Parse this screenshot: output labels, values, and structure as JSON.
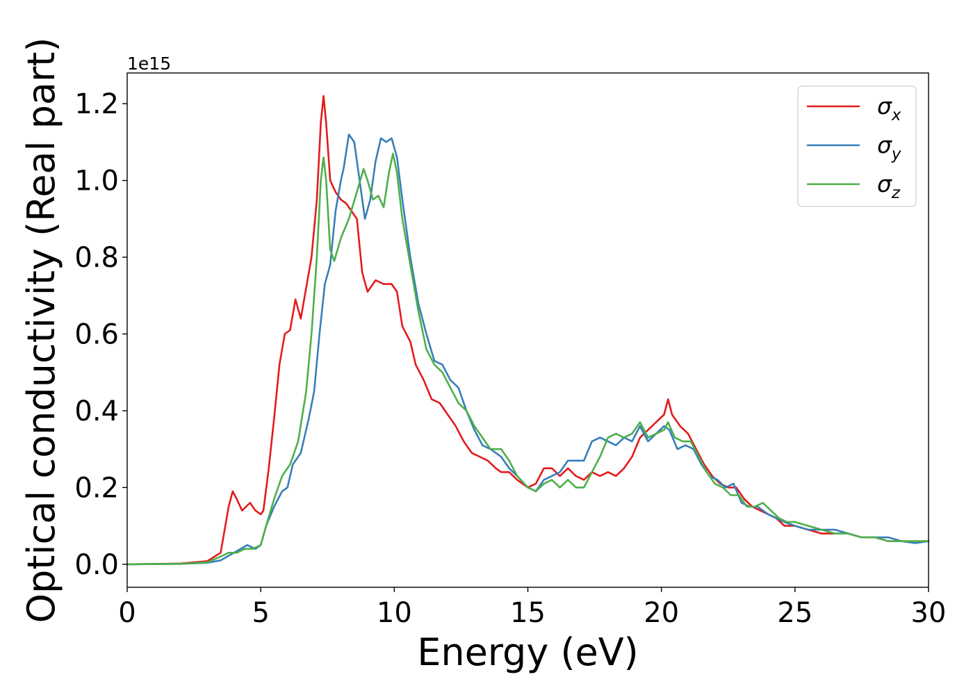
{
  "chart_data": {
    "type": "line",
    "title": "",
    "xlabel": "Energy (eV)",
    "ylabel": "Optical conductivity (Real part)",
    "y_offset_label": "1e15",
    "xlim": [
      0,
      30
    ],
    "ylim": [
      -0.06,
      1.28
    ],
    "xticks": [
      0,
      5,
      10,
      15,
      20,
      25,
      30
    ],
    "yticks": [
      0.0,
      0.2,
      0.4,
      0.6,
      0.8,
      1.0,
      1.2
    ],
    "xtick_labels": [
      "0",
      "5",
      "10",
      "15",
      "20",
      "25",
      "30"
    ],
    "ytick_labels": [
      "0.0",
      "0.2",
      "0.4",
      "0.6",
      "0.8",
      "1.0",
      "1.2"
    ],
    "grid": false,
    "legend_position": "top-right",
    "series": [
      {
        "name": "σx",
        "legend_symbol": "σ",
        "legend_subscript": "x",
        "color": "#e41a1c",
        "points": [
          [
            0,
            0
          ],
          [
            2,
            0.002
          ],
          [
            3,
            0.008
          ],
          [
            3.5,
            0.03
          ],
          [
            3.8,
            0.15
          ],
          [
            3.95,
            0.19
          ],
          [
            4.1,
            0.17
          ],
          [
            4.3,
            0.14
          ],
          [
            4.6,
            0.16
          ],
          [
            4.8,
            0.14
          ],
          [
            5.0,
            0.13
          ],
          [
            5.1,
            0.14
          ],
          [
            5.3,
            0.25
          ],
          [
            5.5,
            0.38
          ],
          [
            5.7,
            0.52
          ],
          [
            5.9,
            0.6
          ],
          [
            6.1,
            0.61
          ],
          [
            6.3,
            0.69
          ],
          [
            6.5,
            0.64
          ],
          [
            6.7,
            0.72
          ],
          [
            6.9,
            0.8
          ],
          [
            7.1,
            0.95
          ],
          [
            7.25,
            1.15
          ],
          [
            7.35,
            1.22
          ],
          [
            7.45,
            1.15
          ],
          [
            7.6,
            1.0
          ],
          [
            7.8,
            0.97
          ],
          [
            8.0,
            0.95
          ],
          [
            8.2,
            0.94
          ],
          [
            8.4,
            0.92
          ],
          [
            8.6,
            0.9
          ],
          [
            8.8,
            0.76
          ],
          [
            9.0,
            0.71
          ],
          [
            9.3,
            0.74
          ],
          [
            9.6,
            0.73
          ],
          [
            9.9,
            0.73
          ],
          [
            10.1,
            0.71
          ],
          [
            10.3,
            0.62
          ],
          [
            10.6,
            0.58
          ],
          [
            10.8,
            0.52
          ],
          [
            11.1,
            0.48
          ],
          [
            11.4,
            0.43
          ],
          [
            11.7,
            0.42
          ],
          [
            12.0,
            0.39
          ],
          [
            12.3,
            0.36
          ],
          [
            12.6,
            0.32
          ],
          [
            12.9,
            0.29
          ],
          [
            13.2,
            0.28
          ],
          [
            13.5,
            0.27
          ],
          [
            13.8,
            0.25
          ],
          [
            14.0,
            0.24
          ],
          [
            14.3,
            0.24
          ],
          [
            14.6,
            0.22
          ],
          [
            15.0,
            0.2
          ],
          [
            15.3,
            0.21
          ],
          [
            15.6,
            0.25
          ],
          [
            15.9,
            0.25
          ],
          [
            16.2,
            0.23
          ],
          [
            16.5,
            0.25
          ],
          [
            16.8,
            0.23
          ],
          [
            17.1,
            0.22
          ],
          [
            17.4,
            0.24
          ],
          [
            17.7,
            0.23
          ],
          [
            18.0,
            0.24
          ],
          [
            18.3,
            0.23
          ],
          [
            18.6,
            0.25
          ],
          [
            18.9,
            0.28
          ],
          [
            19.2,
            0.33
          ],
          [
            19.5,
            0.35
          ],
          [
            19.8,
            0.37
          ],
          [
            20.1,
            0.39
          ],
          [
            20.25,
            0.43
          ],
          [
            20.4,
            0.39
          ],
          [
            20.7,
            0.36
          ],
          [
            21.0,
            0.34
          ],
          [
            21.3,
            0.3
          ],
          [
            21.6,
            0.26
          ],
          [
            21.9,
            0.23
          ],
          [
            22.2,
            0.21
          ],
          [
            22.5,
            0.2
          ],
          [
            22.8,
            0.2
          ],
          [
            23.1,
            0.17
          ],
          [
            23.4,
            0.15
          ],
          [
            23.7,
            0.14
          ],
          [
            24.0,
            0.13
          ],
          [
            24.3,
            0.12
          ],
          [
            24.6,
            0.1
          ],
          [
            25.0,
            0.1
          ],
          [
            25.5,
            0.09
          ],
          [
            26.0,
            0.08
          ],
          [
            26.5,
            0.08
          ],
          [
            27.0,
            0.08
          ],
          [
            27.5,
            0.07
          ],
          [
            28.0,
            0.07
          ],
          [
            28.5,
            0.06
          ],
          [
            29.0,
            0.06
          ],
          [
            29.5,
            0.06
          ],
          [
            30.0,
            0.06
          ]
        ]
      },
      {
        "name": "σy",
        "legend_symbol": "σ",
        "legend_subscript": "y",
        "color": "#377eb8",
        "points": [
          [
            0,
            0
          ],
          [
            2,
            0.001
          ],
          [
            3,
            0.004
          ],
          [
            3.5,
            0.01
          ],
          [
            4.0,
            0.03
          ],
          [
            4.5,
            0.05
          ],
          [
            4.8,
            0.04
          ],
          [
            5.0,
            0.05
          ],
          [
            5.2,
            0.1
          ],
          [
            5.5,
            0.15
          ],
          [
            5.8,
            0.19
          ],
          [
            6.0,
            0.2
          ],
          [
            6.2,
            0.26
          ],
          [
            6.5,
            0.29
          ],
          [
            6.8,
            0.38
          ],
          [
            7.0,
            0.45
          ],
          [
            7.2,
            0.6
          ],
          [
            7.4,
            0.73
          ],
          [
            7.6,
            0.78
          ],
          [
            7.8,
            0.92
          ],
          [
            8.0,
            1.0
          ],
          [
            8.1,
            1.03
          ],
          [
            8.3,
            1.12
          ],
          [
            8.5,
            1.1
          ],
          [
            8.7,
            1.0
          ],
          [
            8.9,
            0.9
          ],
          [
            9.1,
            0.95
          ],
          [
            9.3,
            1.05
          ],
          [
            9.5,
            1.11
          ],
          [
            9.7,
            1.1
          ],
          [
            9.9,
            1.11
          ],
          [
            10.1,
            1.06
          ],
          [
            10.3,
            0.95
          ],
          [
            10.6,
            0.8
          ],
          [
            10.9,
            0.68
          ],
          [
            11.2,
            0.6
          ],
          [
            11.5,
            0.53
          ],
          [
            11.8,
            0.52
          ],
          [
            12.1,
            0.48
          ],
          [
            12.4,
            0.46
          ],
          [
            12.7,
            0.4
          ],
          [
            13.0,
            0.35
          ],
          [
            13.3,
            0.31
          ],
          [
            13.6,
            0.3
          ],
          [
            14.0,
            0.28
          ],
          [
            14.3,
            0.25
          ],
          [
            14.6,
            0.23
          ],
          [
            15.0,
            0.2
          ],
          [
            15.3,
            0.19
          ],
          [
            15.6,
            0.22
          ],
          [
            15.9,
            0.23
          ],
          [
            16.2,
            0.24
          ],
          [
            16.5,
            0.27
          ],
          [
            16.8,
            0.27
          ],
          [
            17.1,
            0.27
          ],
          [
            17.4,
            0.32
          ],
          [
            17.7,
            0.33
          ],
          [
            18.0,
            0.32
          ],
          [
            18.3,
            0.31
          ],
          [
            18.6,
            0.33
          ],
          [
            18.9,
            0.32
          ],
          [
            19.2,
            0.36
          ],
          [
            19.5,
            0.32
          ],
          [
            19.8,
            0.34
          ],
          [
            20.1,
            0.36
          ],
          [
            20.3,
            0.35
          ],
          [
            20.6,
            0.3
          ],
          [
            20.9,
            0.31
          ],
          [
            21.2,
            0.3
          ],
          [
            21.5,
            0.26
          ],
          [
            21.8,
            0.23
          ],
          [
            22.1,
            0.22
          ],
          [
            22.4,
            0.2
          ],
          [
            22.7,
            0.21
          ],
          [
            23.0,
            0.16
          ],
          [
            23.3,
            0.15
          ],
          [
            23.6,
            0.15
          ],
          [
            24.0,
            0.13
          ],
          [
            24.3,
            0.12
          ],
          [
            24.6,
            0.11
          ],
          [
            25.0,
            0.1
          ],
          [
            25.5,
            0.09
          ],
          [
            26.0,
            0.09
          ],
          [
            26.5,
            0.09
          ],
          [
            27.0,
            0.08
          ],
          [
            27.5,
            0.07
          ],
          [
            28.0,
            0.07
          ],
          [
            28.5,
            0.07
          ],
          [
            29.0,
            0.06
          ],
          [
            29.5,
            0.055
          ],
          [
            30.0,
            0.06
          ]
        ]
      },
      {
        "name": "σz",
        "legend_symbol": "σ",
        "legend_subscript": "z",
        "color": "#4daf4a",
        "points": [
          [
            0,
            0
          ],
          [
            2,
            0.001
          ],
          [
            3,
            0.005
          ],
          [
            3.5,
            0.02
          ],
          [
            3.8,
            0.03
          ],
          [
            4.1,
            0.03
          ],
          [
            4.4,
            0.04
          ],
          [
            4.7,
            0.04
          ],
          [
            5.0,
            0.05
          ],
          [
            5.2,
            0.1
          ],
          [
            5.5,
            0.17
          ],
          [
            5.8,
            0.23
          ],
          [
            6.1,
            0.26
          ],
          [
            6.4,
            0.32
          ],
          [
            6.7,
            0.45
          ],
          [
            6.9,
            0.6
          ],
          [
            7.1,
            0.8
          ],
          [
            7.25,
            1.0
          ],
          [
            7.35,
            1.06
          ],
          [
            7.45,
            1.0
          ],
          [
            7.6,
            0.82
          ],
          [
            7.75,
            0.79
          ],
          [
            8.0,
            0.85
          ],
          [
            8.3,
            0.9
          ],
          [
            8.6,
            0.97
          ],
          [
            8.85,
            1.03
          ],
          [
            9.0,
            1.0
          ],
          [
            9.2,
            0.95
          ],
          [
            9.4,
            0.96
          ],
          [
            9.6,
            0.93
          ],
          [
            9.8,
            1.02
          ],
          [
            9.95,
            1.07
          ],
          [
            10.1,
            1.02
          ],
          [
            10.3,
            0.9
          ],
          [
            10.6,
            0.78
          ],
          [
            10.9,
            0.66
          ],
          [
            11.2,
            0.56
          ],
          [
            11.5,
            0.52
          ],
          [
            11.8,
            0.5
          ],
          [
            12.1,
            0.46
          ],
          [
            12.4,
            0.42
          ],
          [
            12.7,
            0.4
          ],
          [
            13.0,
            0.36
          ],
          [
            13.3,
            0.33
          ],
          [
            13.6,
            0.3
          ],
          [
            14.0,
            0.3
          ],
          [
            14.3,
            0.27
          ],
          [
            14.6,
            0.23
          ],
          [
            15.0,
            0.2
          ],
          [
            15.3,
            0.19
          ],
          [
            15.6,
            0.21
          ],
          [
            15.9,
            0.22
          ],
          [
            16.2,
            0.2
          ],
          [
            16.5,
            0.22
          ],
          [
            16.8,
            0.2
          ],
          [
            17.1,
            0.2
          ],
          [
            17.4,
            0.24
          ],
          [
            17.7,
            0.28
          ],
          [
            18.0,
            0.33
          ],
          [
            18.3,
            0.34
          ],
          [
            18.6,
            0.33
          ],
          [
            18.9,
            0.34
          ],
          [
            19.2,
            0.37
          ],
          [
            19.5,
            0.33
          ],
          [
            19.8,
            0.34
          ],
          [
            20.1,
            0.35
          ],
          [
            20.25,
            0.37
          ],
          [
            20.5,
            0.33
          ],
          [
            20.8,
            0.32
          ],
          [
            21.1,
            0.32
          ],
          [
            21.4,
            0.28
          ],
          [
            21.7,
            0.24
          ],
          [
            22.0,
            0.21
          ],
          [
            22.3,
            0.2
          ],
          [
            22.6,
            0.18
          ],
          [
            22.9,
            0.18
          ],
          [
            23.2,
            0.15
          ],
          [
            23.5,
            0.15
          ],
          [
            23.8,
            0.16
          ],
          [
            24.1,
            0.14
          ],
          [
            24.4,
            0.12
          ],
          [
            24.7,
            0.11
          ],
          [
            25.0,
            0.11
          ],
          [
            25.5,
            0.1
          ],
          [
            26.0,
            0.09
          ],
          [
            26.5,
            0.08
          ],
          [
            27.0,
            0.08
          ],
          [
            27.5,
            0.07
          ],
          [
            28.0,
            0.07
          ],
          [
            28.5,
            0.06
          ],
          [
            29.0,
            0.06
          ],
          [
            29.5,
            0.06
          ],
          [
            30.0,
            0.06
          ]
        ]
      }
    ]
  }
}
